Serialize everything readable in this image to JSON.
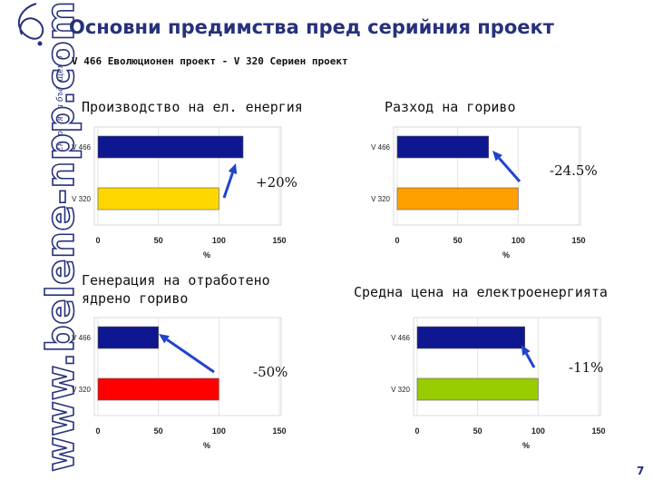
{
  "slide": {
    "title": "Основни предимства пред серийния проект",
    "subtitle": "V 466 Еволюционен проект - V 320 Сериен проект",
    "page_number": "7",
    "accent_color": "#27317b"
  },
  "sidebar": {
    "url": "www.belene-npp.com",
    "tagline": "Енергия за бъдещето"
  },
  "panels": [
    {
      "heading": "Производство на ел. енергия",
      "change": "+20%"
    },
    {
      "heading": "Разход на гориво",
      "change": "-24.5%"
    },
    {
      "heading": "Генерация на отработено ядрено гориво",
      "change": "-50%"
    },
    {
      "heading": "Средна цена на електроенергията",
      "change": "-11%"
    }
  ],
  "chart_data": [
    {
      "type": "bar",
      "orientation": "horizontal",
      "title": "Производство на ел. енергия",
      "categories": [
        "V 466",
        "V 320"
      ],
      "values": [
        120,
        100
      ],
      "colors": [
        "#0e1790",
        "#ffd700"
      ],
      "xlabel": "%",
      "xlim": [
        0,
        150
      ],
      "xticks": [
        "0",
        "50",
        "100",
        "150"
      ],
      "annotation": "+20%"
    },
    {
      "type": "bar",
      "orientation": "horizontal",
      "title": "Разход на гориво",
      "categories": [
        "V 466",
        "V 320"
      ],
      "values": [
        75.5,
        100
      ],
      "colors": [
        "#0e1790",
        "#ffa000"
      ],
      "xlabel": "%",
      "xlim": [
        0,
        150
      ],
      "xticks": [
        "0",
        "50",
        "100",
        "150"
      ],
      "annotation": "-24.5%"
    },
    {
      "type": "bar",
      "orientation": "horizontal",
      "title": "Генерация на отработено ядрено гориво",
      "categories": [
        "V 466",
        "V 320"
      ],
      "values": [
        50,
        100
      ],
      "colors": [
        "#0e1790",
        "#ff0000"
      ],
      "xlabel": "%",
      "xlim": [
        0,
        150
      ],
      "xticks": [
        "0",
        "50",
        "100",
        "150"
      ],
      "annotation": "-50%"
    },
    {
      "type": "bar",
      "orientation": "horizontal",
      "title": "Средна цена на електроенергията",
      "categories": [
        "V 466",
        "V 320"
      ],
      "values": [
        89,
        100
      ],
      "colors": [
        "#0e1790",
        "#99cc00"
      ],
      "xlabel": "%",
      "xlim": [
        0,
        150
      ],
      "xticks": [
        "0",
        "50",
        "100",
        "150"
      ],
      "annotation": "-11%"
    }
  ]
}
